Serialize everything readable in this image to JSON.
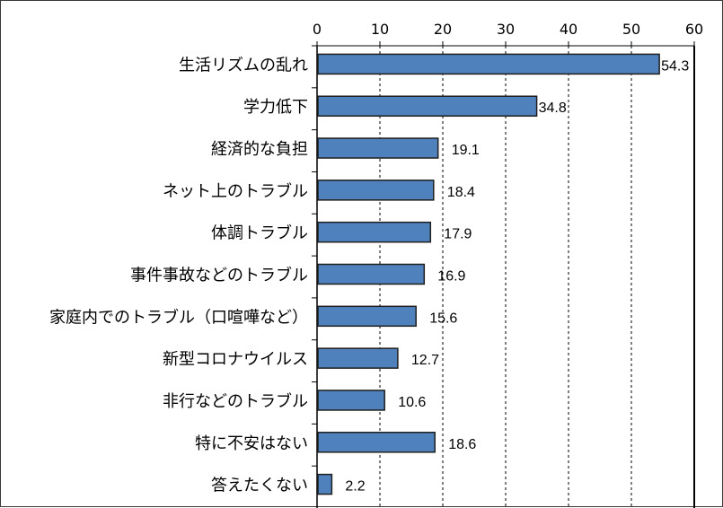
{
  "chart_data": {
    "type": "bar",
    "orientation": "horizontal",
    "title": "",
    "xlabel": "",
    "ylabel": "",
    "xlim": [
      0,
      60
    ],
    "ticks": [
      "0",
      "10",
      "20",
      "30",
      "40",
      "50",
      "60"
    ],
    "tick_axis_position": "top",
    "grid": "vertical dashed",
    "categories": [
      "生活リズムの乱れ",
      "学力低下",
      "経済的な負担",
      "ネット上のトラブル",
      "体調トラブル",
      "事件事故などのトラブル",
      "家庭内でのトラブル（口喧嘩など）",
      "新型コロナウイルス",
      "非行などのトラブル",
      "特に不安はない",
      "答えたくない"
    ],
    "values": [
      54.3,
      34.8,
      19.1,
      18.4,
      17.9,
      16.9,
      15.6,
      12.7,
      10.6,
      18.6,
      2.2
    ],
    "value_labels": [
      "54.3",
      "34.8",
      "19.1",
      "18.4",
      "17.9",
      "16.9",
      "15.6",
      "12.7",
      "10.6",
      "18.6",
      "2.2"
    ],
    "colors": {
      "bar_fill": "#4f81bd",
      "bar_stroke": "#1f1f1f",
      "grid": "#000000"
    }
  }
}
